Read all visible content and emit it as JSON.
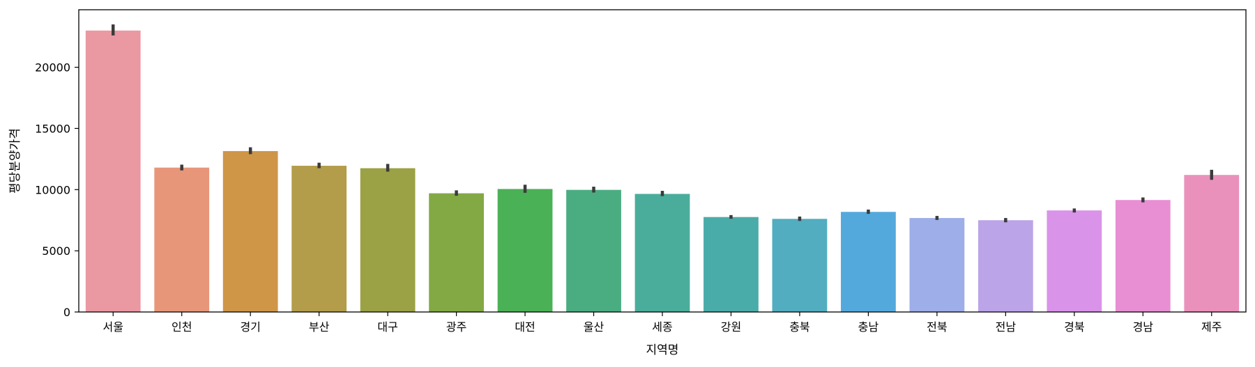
{
  "chart_data": {
    "type": "bar",
    "xlabel": "지역명",
    "ylabel": "평당분양가격",
    "ylim": [
      0,
      24700
    ],
    "yticks": [
      0,
      5000,
      10000,
      15000,
      20000
    ],
    "grid": false,
    "legend": "none",
    "categories": [
      "서울",
      "인천",
      "경기",
      "부산",
      "대구",
      "광주",
      "대전",
      "울산",
      "세종",
      "강원",
      "충북",
      "충남",
      "전북",
      "전남",
      "경북",
      "경남",
      "제주"
    ],
    "values": [
      23000,
      11800,
      13150,
      11950,
      11750,
      9700,
      10050,
      9980,
      9650,
      7760,
      7610,
      8180,
      7680,
      7500,
      8300,
      9150,
      11200
    ],
    "error_low": [
      22600,
      11570,
      12900,
      11750,
      11470,
      9500,
      9740,
      9760,
      9470,
      7620,
      7440,
      8020,
      7520,
      7330,
      8130,
      8960,
      10800
    ],
    "error_high": [
      23500,
      12040,
      13460,
      12200,
      12100,
      9940,
      10400,
      10240,
      9900,
      7920,
      7800,
      8370,
      7850,
      7680,
      8460,
      9360,
      11620
    ],
    "colors": [
      "#ea98a2",
      "#e8967a",
      "#cf9648",
      "#b39c4a",
      "#9ba145",
      "#83a944",
      "#4bb156",
      "#4aad82",
      "#4aad9b",
      "#4aaca9",
      "#51adbf",
      "#54a9dc",
      "#9daee8",
      "#bca4e8",
      "#d993e9",
      "#e88ed3",
      "#ea91bb"
    ],
    "error_color": "#3b3b3b"
  }
}
